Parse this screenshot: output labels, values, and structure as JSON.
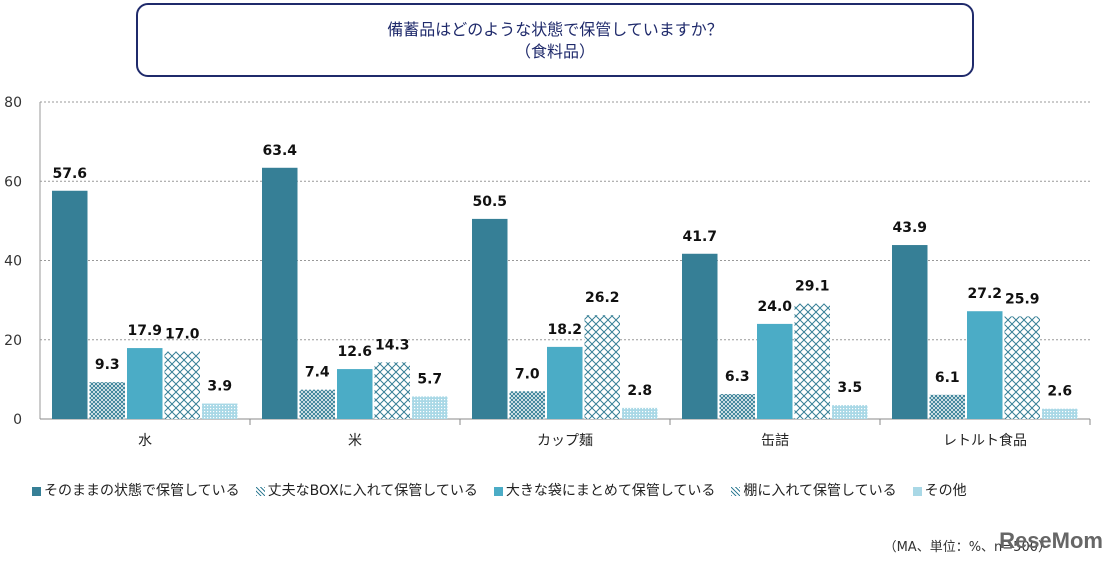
{
  "chart_data": {
    "type": "bar",
    "title": "備蓄品はどのような状態で保管していますか？",
    "subtitle": "（食料品）",
    "categories": [
      "水",
      "米",
      "カップ麺",
      "缶詰",
      "レトルト食品"
    ],
    "series": [
      {
        "name": "そのままの状態で保管している",
        "values": [
          57.6,
          63.4,
          50.5,
          41.7,
          43.9
        ],
        "color": "#367f96",
        "pattern": "solid"
      },
      {
        "name": "丈夫なBOXに入れて保管している",
        "values": [
          9.3,
          7.4,
          7.0,
          6.3,
          6.1
        ],
        "color": "#367f96",
        "pattern": "fine-cross"
      },
      {
        "name": "大きな袋にまとめて保管している",
        "values": [
          17.9,
          12.6,
          18.2,
          24.0,
          27.2
        ],
        "color": "#4bacc6",
        "pattern": "solid"
      },
      {
        "name": "棚に入れて保管している",
        "values": [
          17.0,
          14.3,
          26.2,
          29.1,
          25.9
        ],
        "color": "#367f96",
        "pattern": "wide-cross"
      },
      {
        "name": "その他",
        "values": [
          3.9,
          5.7,
          2.8,
          3.5,
          2.6
        ],
        "color": "#4bacc6",
        "pattern": "dots"
      }
    ],
    "ylim": [
      0,
      80
    ],
    "yticks": [
      0,
      20,
      40,
      60,
      80
    ],
    "grid": true,
    "legend": "bottom",
    "note": "（MA、単位：%、n=500）"
  },
  "logo": "ReseMom"
}
